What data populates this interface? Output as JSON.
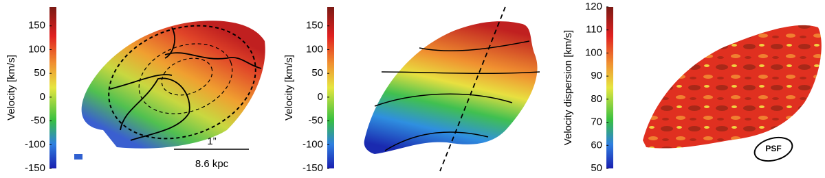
{
  "panels": [
    {
      "colorbar": {
        "label": "Velocity [km/s]",
        "lim": [
          -150,
          190
        ],
        "ticks": [
          -150,
          -100,
          -50,
          0,
          50,
          100,
          150
        ]
      }
    },
    {
      "colorbar": {
        "label": "Velocity [km/s]",
        "lim": [
          -150,
          190
        ],
        "ticks": [
          -150,
          -100,
          -50,
          0,
          50,
          100,
          150
        ]
      }
    },
    {
      "colorbar": {
        "label": "Velocity dispersion [km/s]",
        "lim": [
          50,
          120
        ],
        "ticks": [
          50,
          60,
          70,
          80,
          90,
          100,
          110,
          120
        ]
      }
    }
  ],
  "scale_bar": {
    "angular": "1”",
    "physical": "8.6 kpc"
  },
  "psf_label": "PSF"
}
